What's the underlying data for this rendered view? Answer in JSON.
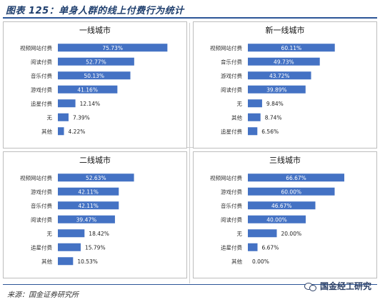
{
  "header": {
    "title": "图表 125：单身人群的线上付费行为统计"
  },
  "footer": {
    "source": "来源：国金证券研究所",
    "watermark": "国金经工研究"
  },
  "colors": {
    "bar": "#4472c4",
    "rule": "#2c5597"
  },
  "chart_data": [
    {
      "type": "bar",
      "orientation": "horizontal",
      "title": "一线城市",
      "categories": [
        "视频网站付费",
        "阅读付费",
        "音乐付费",
        "游戏付费",
        "追星付费",
        "无",
        "其他"
      ],
      "values": [
        75.73,
        52.77,
        50.13,
        41.16,
        12.14,
        7.39,
        4.22
      ],
      "labels": [
        "75.73%",
        "52.77%",
        "50.13%",
        "41.16%",
        "12.14%",
        "7.39%",
        "4.22%"
      ]
    },
    {
      "type": "bar",
      "orientation": "horizontal",
      "title": "新一线城市",
      "categories": [
        "视频网站付费",
        "音乐付费",
        "游戏付费",
        "阅读付费",
        "无",
        "其他",
        "追星付费"
      ],
      "values": [
        60.11,
        49.73,
        43.72,
        39.89,
        9.84,
        8.74,
        6.56
      ],
      "labels": [
        "60.11%",
        "49.73%",
        "43.72%",
        "39.89%",
        "9.84%",
        "8.74%",
        "6.56%"
      ]
    },
    {
      "type": "bar",
      "orientation": "horizontal",
      "title": "二线城市",
      "categories": [
        "视频网站付费",
        "游戏付费",
        "音乐付费",
        "阅读付费",
        "无",
        "追星付费",
        "其他"
      ],
      "values": [
        52.63,
        42.11,
        42.11,
        39.47,
        18.42,
        15.79,
        10.53
      ],
      "labels": [
        "52.63%",
        "42.11%",
        "42.11%",
        "39.47%",
        "18.42%",
        "15.79%",
        "10.53%"
      ]
    },
    {
      "type": "bar",
      "orientation": "horizontal",
      "title": "三线城市",
      "categories": [
        "视频网站付费",
        "游戏付费",
        "音乐付费",
        "阅读付费",
        "无",
        "追星付费",
        "其他"
      ],
      "values": [
        66.67,
        60.0,
        46.67,
        40.0,
        20.0,
        6.67,
        0.0
      ],
      "labels": [
        "66.67%",
        "60.00%",
        "46.67%",
        "40.00%",
        "20.00%",
        "6.67%",
        "0.00%"
      ]
    }
  ]
}
